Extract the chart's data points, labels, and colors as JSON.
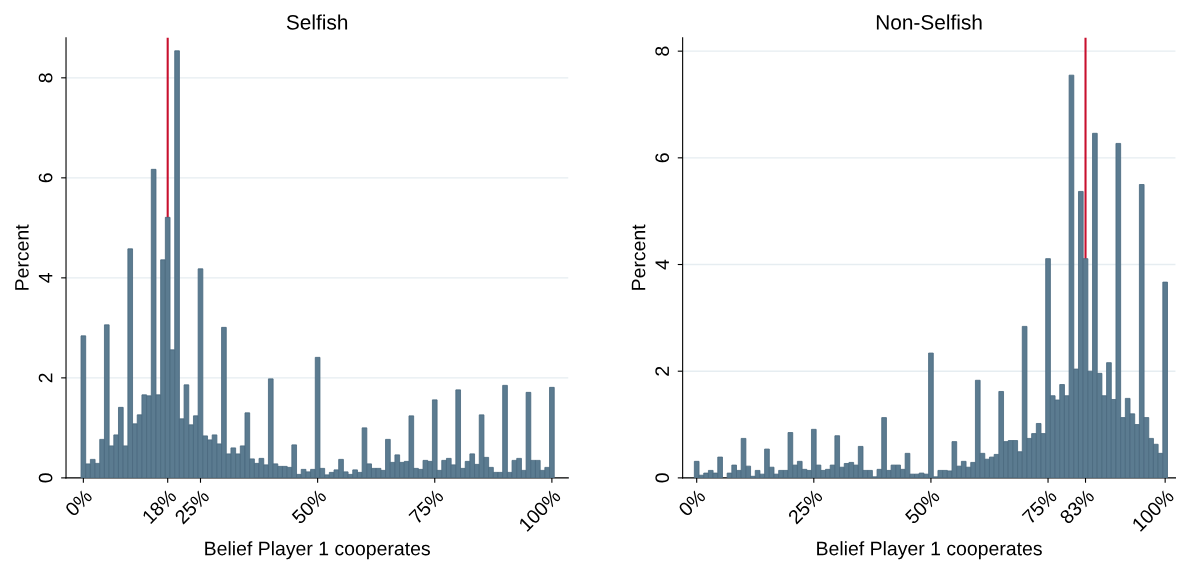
{
  "chart_data": [
    {
      "type": "histogram",
      "title": "Selfish",
      "xlabel": "Belief Player 1 cooperates",
      "ylabel": "Percent",
      "color": "#5b7b90",
      "bins": [
        -0.5,
        0.5,
        1.5,
        2.5,
        3.5,
        4.5,
        5.5,
        6.5,
        7.5,
        8.5,
        9.5,
        10.5,
        11.5,
        12.5,
        13.5,
        14.5,
        15.5,
        16.5,
        17.5,
        18.5,
        19.5,
        20.5,
        21.5,
        22.5,
        23.5,
        24.5,
        25.5,
        26.5,
        27.5,
        28.5,
        29.5,
        30.5,
        31.5,
        32.5,
        33.5,
        34.5,
        35.5,
        36.5,
        37.5,
        38.5,
        39.5,
        40.5,
        41.5,
        42.5,
        43.5,
        44.5,
        45.5,
        46.5,
        47.5,
        48.5,
        49.5,
        50.5,
        51.5,
        52.5,
        53.5,
        54.5,
        55.5,
        56.5,
        57.5,
        58.5,
        59.5,
        60.5,
        61.5,
        62.5,
        63.5,
        64.5,
        65.5,
        66.5,
        67.5,
        68.5,
        69.5,
        70.5,
        71.5,
        72.5,
        73.5,
        74.5,
        75.5,
        76.5,
        77.5,
        78.5,
        79.5,
        80.5,
        81.5,
        82.5,
        83.5,
        84.5,
        85.5,
        86.5,
        87.5,
        88.5,
        89.5,
        90.5,
        91.5,
        92.5,
        93.5,
        94.5,
        95.5,
        96.5,
        97.5,
        98.5,
        99.5,
        100.5
      ],
      "values": [
        2.84,
        0.28,
        0.37,
        0.29,
        0.77,
        3.06,
        0.64,
        0.86,
        1.41,
        0.64,
        4.58,
        1.08,
        1.26,
        1.66,
        1.64,
        6.17,
        1.66,
        4.36,
        5.21,
        2.56,
        8.54,
        1.18,
        1.86,
        1.06,
        1.24,
        4.18,
        0.84,
        0.76,
        0.86,
        0.68,
        3.01,
        0.48,
        0.6,
        0.48,
        0.64,
        1.3,
        0.38,
        0.29,
        0.39,
        0.26,
        1.98,
        0.28,
        0.23,
        0.23,
        0.21,
        0.66,
        0.07,
        0.17,
        0.12,
        0.17,
        2.41,
        0.19,
        0.06,
        0.11,
        0.16,
        0.37,
        0.12,
        0.07,
        0.16,
        0.11,
        1.0,
        0.28,
        0.19,
        0.19,
        0.15,
        0.77,
        0.31,
        0.46,
        0.31,
        0.33,
        1.24,
        0.19,
        0.17,
        0.35,
        0.33,
        1.56,
        0.15,
        0.35,
        0.39,
        0.26,
        1.76,
        0.19,
        0.33,
        0.48,
        0.27,
        1.26,
        0.41,
        0.21,
        0.11,
        0.11,
        1.85,
        0.11,
        0.35,
        0.39,
        0.15,
        1.71,
        0.35,
        0.35,
        0.15,
        0.21,
        1.81
      ],
      "xlim": [
        -3.7,
        103.5
      ],
      "ylim": [
        0,
        8.8
      ],
      "yticks": [
        0,
        2,
        4,
        6,
        8
      ],
      "xticks": [
        {
          "value": 0,
          "label": "0%"
        },
        {
          "value": 18,
          "label": "18%"
        },
        {
          "value": 25,
          "label": "25%"
        },
        {
          "value": 50,
          "label": "50%"
        },
        {
          "value": 75,
          "label": "75%"
        },
        {
          "value": 100,
          "label": "100%"
        }
      ],
      "ref_lines": [
        {
          "axis": "x",
          "value": 18,
          "color": "#c8102e"
        }
      ],
      "grid": "y",
      "legend": false
    },
    {
      "type": "histogram",
      "title": "Non-Selfish",
      "xlabel": "Belief Player 1 cooperates",
      "ylabel": "Percent",
      "color": "#5b7b90",
      "bins": [
        -0.5,
        0.5,
        1.5,
        2.5,
        3.5,
        4.5,
        5.5,
        6.5,
        7.5,
        8.5,
        9.5,
        10.5,
        11.5,
        12.5,
        13.5,
        14.5,
        15.5,
        16.5,
        17.5,
        18.5,
        19.5,
        20.5,
        21.5,
        22.5,
        23.5,
        24.5,
        25.5,
        26.5,
        27.5,
        28.5,
        29.5,
        30.5,
        31.5,
        32.5,
        33.5,
        34.5,
        35.5,
        36.5,
        37.5,
        38.5,
        39.5,
        40.5,
        41.5,
        42.5,
        43.5,
        44.5,
        45.5,
        46.5,
        47.5,
        48.5,
        49.5,
        50.5,
        51.5,
        52.5,
        53.5,
        54.5,
        55.5,
        56.5,
        57.5,
        58.5,
        59.5,
        60.5,
        61.5,
        62.5,
        63.5,
        64.5,
        65.5,
        66.5,
        67.5,
        68.5,
        69.5,
        70.5,
        71.5,
        72.5,
        73.5,
        74.5,
        75.5,
        76.5,
        77.5,
        78.5,
        79.5,
        80.5,
        81.5,
        82.5,
        83.5,
        84.5,
        85.5,
        86.5,
        87.5,
        88.5,
        89.5,
        90.5,
        91.5,
        92.5,
        93.5,
        94.5,
        95.5,
        96.5,
        97.5,
        98.5,
        99.5,
        100.5
      ],
      "values": [
        0.31,
        0.05,
        0.09,
        0.14,
        0.09,
        0.39,
        0,
        0.09,
        0.24,
        0.14,
        0.74,
        0.22,
        0.03,
        0.14,
        0.07,
        0.54,
        0.2,
        0.07,
        0.14,
        0.14,
        0.85,
        0.24,
        0.31,
        0.16,
        0.14,
        0.91,
        0.24,
        0.14,
        0.16,
        0.24,
        0.79,
        0.2,
        0.27,
        0.29,
        0.24,
        0.59,
        0.14,
        0.14,
        0.02,
        0.16,
        1.13,
        0.14,
        0.24,
        0.24,
        0.16,
        0.46,
        0.07,
        0.07,
        0.09,
        0.07,
        2.34,
        0.02,
        0.14,
        0.14,
        0.13,
        0.68,
        0.22,
        0.31,
        0.2,
        0.29,
        1.83,
        0.46,
        0.35,
        0.39,
        0.44,
        1.62,
        0.68,
        0.7,
        0.7,
        0.49,
        2.84,
        0.74,
        0.83,
        1.02,
        0.83,
        4.11,
        1.54,
        1.46,
        1.75,
        1.54,
        7.55,
        2.04,
        5.37,
        4.11,
        2.0,
        6.46,
        1.96,
        1.54,
        2.16,
        1.47,
        6.27,
        1.13,
        1.49,
        1.2,
        1.0,
        5.5,
        1.13,
        0.74,
        0.63,
        0.46,
        3.67
      ],
      "xlim": [
        -3.0,
        102.2
      ],
      "ylim": [
        0,
        8.25
      ],
      "yticks": [
        0,
        2,
        4,
        6,
        8
      ],
      "xticks": [
        {
          "value": 0,
          "label": "0%"
        },
        {
          "value": 25,
          "label": "25%"
        },
        {
          "value": 50,
          "label": "50%"
        },
        {
          "value": 75,
          "label": "75%"
        },
        {
          "value": 83,
          "label": "83%"
        },
        {
          "value": 100,
          "label": "100%"
        }
      ],
      "ref_lines": [
        {
          "axis": "x",
          "value": 83,
          "color": "#c8102e"
        }
      ],
      "grid": "y",
      "legend": false
    }
  ]
}
